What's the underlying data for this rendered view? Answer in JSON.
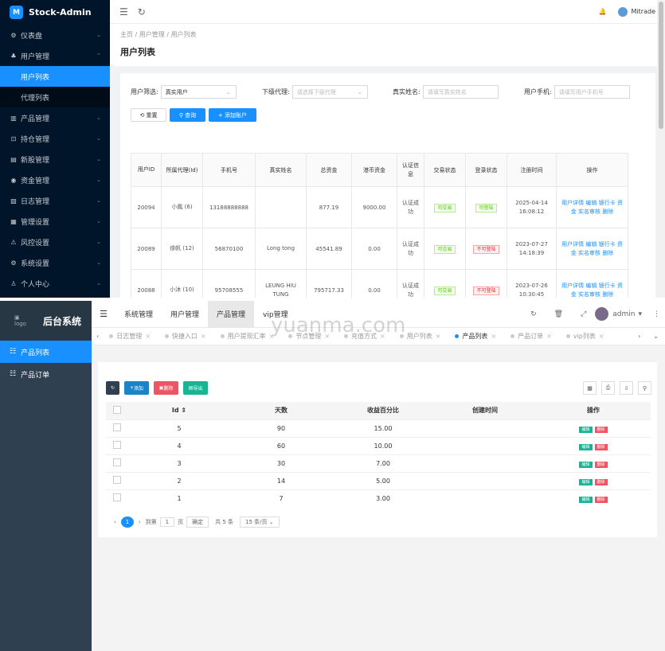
{
  "top": {
    "brand": "Stock-Admin",
    "brand_logo": "M",
    "sidebar": [
      {
        "label": "仪表盘",
        "icon": "dashboard-icon",
        "glyph": "⚙"
      },
      {
        "label": "用户管理",
        "icon": "user-icon",
        "glyph": "♣",
        "expanded": true
      },
      {
        "label": "产品管理",
        "icon": "chart-icon",
        "glyph": "▥"
      },
      {
        "label": "持仓管理",
        "icon": "position-icon",
        "glyph": "⊡"
      },
      {
        "label": "新股管理",
        "icon": "ipo-icon",
        "glyph": "▤"
      },
      {
        "label": "资金管理",
        "icon": "fund-icon",
        "glyph": "◉"
      },
      {
        "label": "日志管理",
        "icon": "log-icon",
        "glyph": "▧"
      },
      {
        "label": "管理设置",
        "icon": "settings-icon",
        "glyph": "▦"
      },
      {
        "label": "风控设置",
        "icon": "risk-icon",
        "glyph": "⚠"
      },
      {
        "label": "系统设置",
        "icon": "system-icon",
        "glyph": "⚙"
      },
      {
        "label": "个人中心",
        "icon": "profile-icon",
        "glyph": "♙"
      }
    ],
    "submenu": [
      "用户列表",
      "代理列表"
    ],
    "header": {
      "user": "Mitrade"
    },
    "breadcrumb": [
      "主页",
      "用户管理",
      "用户列表"
    ],
    "page_title": "用户列表",
    "filters": {
      "user_filter_label": "用户筛选:",
      "user_filter_value": "真实用户",
      "agent_label": "下级代理:",
      "agent_placeholder": "请选择下级代理",
      "name_label": "真实姓名:",
      "name_placeholder": "请填写真实姓名",
      "phone_label": "用户手机:",
      "phone_placeholder": "请填写用户手机号"
    },
    "buttons": {
      "reset": "重置",
      "search": "查询",
      "add": "添加账户"
    },
    "columns": [
      "用户ID",
      "所属代理(Id)",
      "手机号",
      "真实姓名",
      "总资金",
      "港币资金",
      "认证信息",
      "交易状态",
      "登录状态",
      "注册时间",
      "操作"
    ],
    "rows": [
      {
        "id": "20094",
        "agent": "小鳳 (6)",
        "phone": "13188888888",
        "name": "",
        "total": "877.19",
        "hkd": "9000.00",
        "auth": "认证成功",
        "trade": "可交易",
        "login": "可登陆",
        "login_ok": true,
        "date": "2025-04-14",
        "time": "16:08:12"
      },
      {
        "id": "20089",
        "agent": "徐帆 (12)",
        "phone": "56870100",
        "name": "Long tong",
        "total": "45541.89",
        "hkd": "0.00",
        "auth": "认证成功",
        "trade": "可交易",
        "login": "不可登陆",
        "login_ok": false,
        "date": "2023-07-27",
        "time": "14:18:39"
      },
      {
        "id": "20088",
        "agent": "小沐 (10)",
        "phone": "95708555",
        "name": "LEUNG HIU TUNG",
        "total": "795717.33",
        "hkd": "0.00",
        "auth": "认证成功",
        "trade": "可交易",
        "login": "不可登陆",
        "login_ok": false,
        "date": "2023-07-26",
        "time": "10:30:45"
      }
    ],
    "ops": [
      "用户详情",
      "编辑",
      "银行卡",
      "资金",
      "实名审核",
      "删除"
    ]
  },
  "bottom": {
    "brand": "后台系统",
    "logo_alt": "logo",
    "sidebar": [
      {
        "label": "产品列表",
        "active": true
      },
      {
        "label": "产品订单",
        "active": false
      }
    ],
    "nav": [
      "系统管理",
      "用户管理",
      "产品管理",
      "vip管理"
    ],
    "header_user": "admin",
    "tabs": [
      "日志管理",
      "快捷入口",
      "用户提现汇率",
      "节点管理",
      "充值方式",
      "用户列表",
      "产品列表",
      "产品订单",
      "vip列表"
    ],
    "toolbar": {
      "add": "添加",
      "delete": "删除",
      "export": "导出"
    },
    "columns": [
      "Id",
      "天数",
      "收益百分比",
      "创建时间",
      "操作"
    ],
    "rows": [
      {
        "id": "5",
        "days": "90",
        "pct": "15.00",
        "created": ""
      },
      {
        "id": "4",
        "days": "60",
        "pct": "10.00",
        "created": ""
      },
      {
        "id": "3",
        "days": "30",
        "pct": "7.00",
        "created": ""
      },
      {
        "id": "2",
        "days": "14",
        "pct": "5.00",
        "created": ""
      },
      {
        "id": "1",
        "days": "7",
        "pct": "3.00",
        "created": ""
      }
    ],
    "row_ops": {
      "edit": "编辑",
      "delete": "删除"
    },
    "pager": {
      "current": "1",
      "goto": "到第",
      "page_input": "1",
      "page_unit": "页",
      "confirm": "确定",
      "total": "共 5 条",
      "per_page": "15 条/页"
    },
    "watermark": "yuanma.com"
  }
}
